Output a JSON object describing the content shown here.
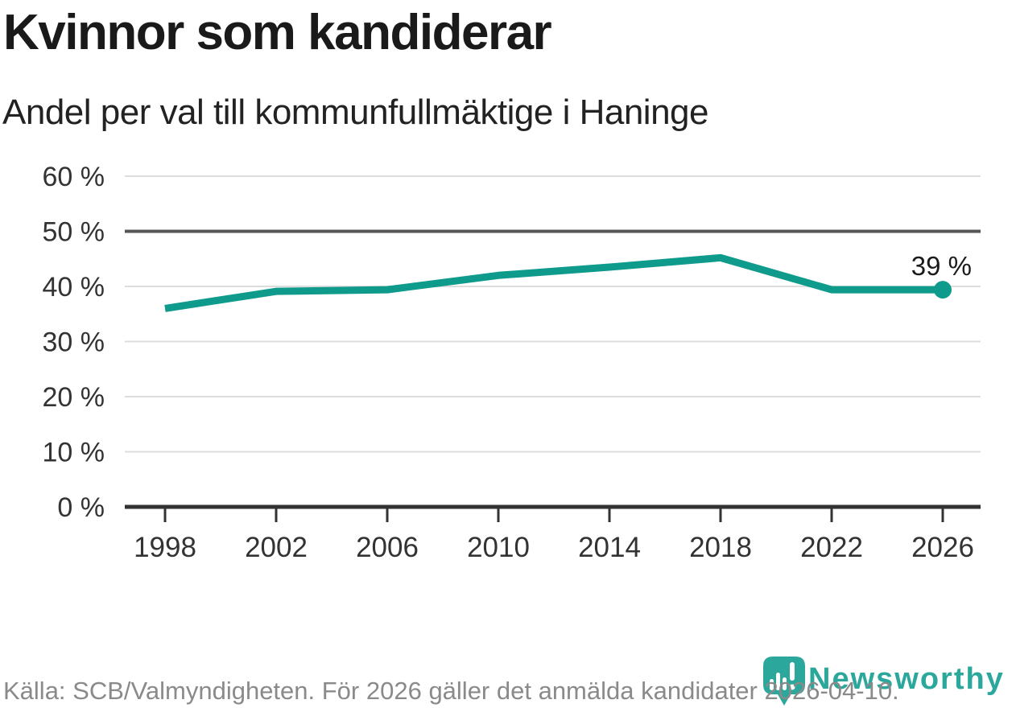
{
  "header": {
    "title": "Kvinnor som kandiderar",
    "subtitle": "Andel per val till kommunfullmäktige i Haninge"
  },
  "chart_data": {
    "type": "line",
    "title": "Kvinnor som kandiderar",
    "subtitle": "Andel per val till kommunfullmäktige i Haninge",
    "x": [
      "1998",
      "2002",
      "2006",
      "2010",
      "2014",
      "2018",
      "2022",
      "2026"
    ],
    "values": [
      36,
      39.1,
      39.4,
      42,
      43.5,
      45.2,
      39.4,
      39.4
    ],
    "unit": "%",
    "ylim": [
      0,
      60
    ],
    "ytick_step": 10,
    "yticks": [
      "0 %",
      "10 %",
      "20 %",
      "30 %",
      "40 %",
      "50 %",
      "60 %"
    ],
    "reference_line": 50,
    "grid": true,
    "legend_position": "none",
    "end_annotation": "39 %",
    "colors": {
      "line": "#0f9b8c",
      "grid": "#dddddd",
      "reference": "#555558",
      "axis": "#333333",
      "tick_text": "#333333",
      "annotation_text": "#1a1a1a"
    }
  },
  "footer": {
    "source": "Källa: SCB/Valmyndigheten. För 2026 gäller det anmälda kandidater 2026-04-10.",
    "brand": "Newsworthy",
    "brand_color": "#2ba89b"
  }
}
